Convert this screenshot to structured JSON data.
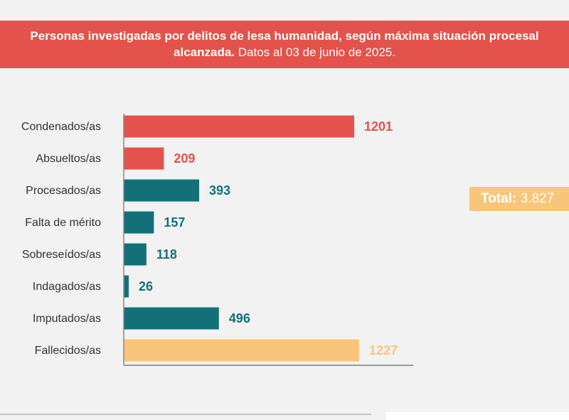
{
  "chart_data": {
    "type": "bar",
    "orientation": "horizontal",
    "title_bold": "Personas investigadas por delitos de lesa humanidad, según máxima situación procesal alcanzada.",
    "title_rest": "Datos al 03 de junio de 2025.",
    "categories": [
      "Condenados/as",
      "Absueltos/as",
      "Procesados/as",
      "Falta de mérito",
      "Sobreseídos/as",
      "Indagados/as",
      "Imputados/as",
      "Fallecidos/as"
    ],
    "values": [
      1201,
      209,
      393,
      157,
      118,
      26,
      496,
      1227
    ],
    "value_labels": [
      "1201",
      "209",
      "393",
      "157",
      "118",
      "26",
      "496",
      "1227"
    ],
    "bar_colors": [
      "#e3524b",
      "#e3524b",
      "#137078",
      "#137078",
      "#137078",
      "#137078",
      "#137078",
      "#f9c57a"
    ],
    "xlim": [
      0,
      1500
    ],
    "grid": false
  },
  "total": {
    "label": "Total:",
    "value": "3.827"
  }
}
